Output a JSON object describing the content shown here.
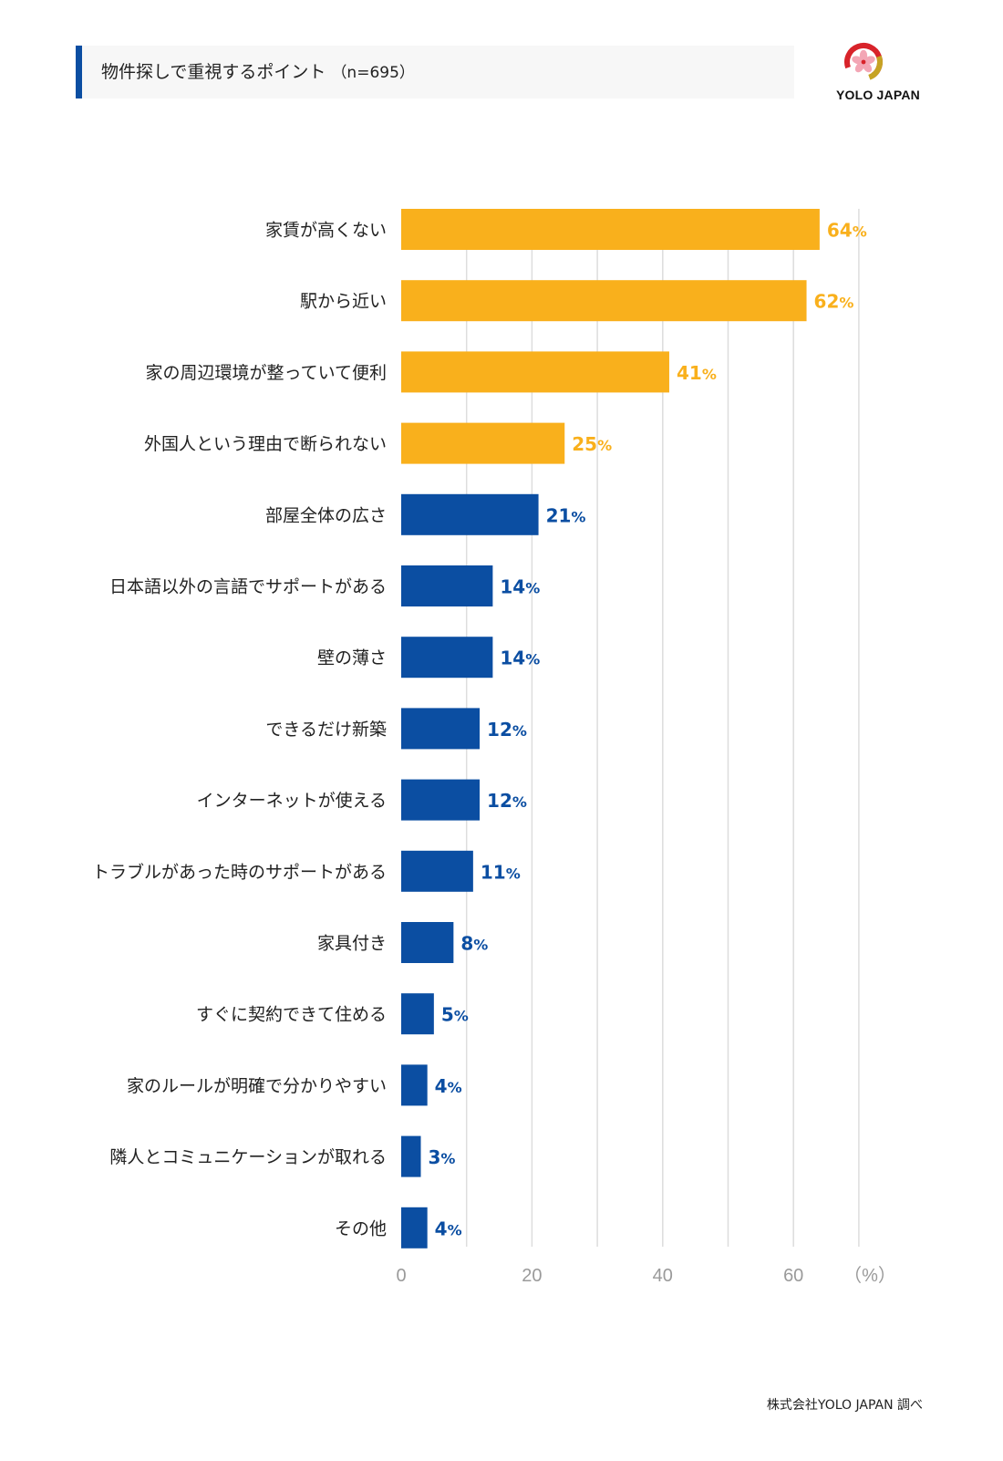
{
  "title": {
    "text": "物件探しで重視するポイント",
    "n": "（n=695）"
  },
  "logo": {
    "text": "YOLO JAPAN",
    "icon": "sakura-ring-icon"
  },
  "source": "株式会社YOLO JAPAN 調べ",
  "colors": {
    "highlight": "#f9b01c",
    "normal": "#0b4ea2",
    "grid": "#dddddd",
    "tick": "#9a9a9a",
    "title_accent": "#0b4ea2"
  },
  "chart_data": {
    "type": "bar",
    "orientation": "horizontal",
    "categories": [
      "家賃が高くない",
      "駅から近い",
      "家の周辺環境が整っていて便利",
      "外国人という理由で断られない",
      "部屋全体の広さ",
      "日本語以外の言語でサポートがある",
      "壁の薄さ",
      "できるだけ新築",
      "インターネットが使える",
      "トラブルがあった時のサポートがある",
      "家具付き",
      "すぐに契約できて住める",
      "家のルールが明確で分かりやすい",
      "隣人とコミュニケーションが取れる",
      "その他"
    ],
    "values": [
      64,
      62,
      41,
      25,
      21,
      14,
      14,
      12,
      12,
      11,
      8,
      5,
      4,
      3,
      4
    ],
    "highlight_top": 4,
    "value_suffix": "%",
    "xlim": [
      0,
      70
    ],
    "xticks": [
      0,
      20,
      40,
      60
    ],
    "unit_label": "（%）",
    "grid": true,
    "grid_step": 10
  }
}
